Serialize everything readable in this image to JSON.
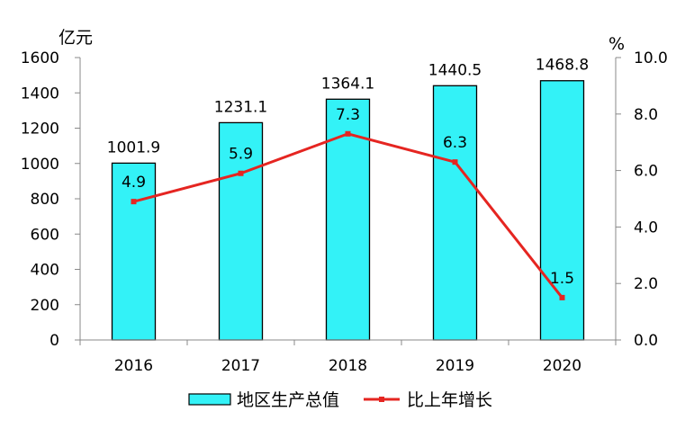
{
  "chart_data": {
    "type": "bar+line",
    "categories": [
      "2016",
      "2017",
      "2018",
      "2019",
      "2020"
    ],
    "series": [
      {
        "name": "地区生产总值",
        "type": "bar",
        "axis": "left",
        "values": [
          1001.9,
          1231.1,
          1364.1,
          1440.5,
          1468.8
        ],
        "labels": [
          "1001.9",
          "1231.1",
          "1364.1",
          "1440.5",
          "1468.8"
        ],
        "color": "#33f2f7",
        "edge_color": "#000000"
      },
      {
        "name": "比上年增长",
        "type": "line",
        "axis": "right",
        "values": [
          4.9,
          5.9,
          7.3,
          6.3,
          1.5
        ],
        "labels": [
          "4.9",
          "5.9",
          "7.3",
          "6.3",
          "1.5"
        ],
        "color": "#e52521"
      }
    ],
    "y_left": {
      "unit": "亿元",
      "ylim": [
        0,
        1600
      ],
      "ticks": [
        "0",
        "200",
        "400",
        "600",
        "800",
        "1000",
        "1200",
        "1400",
        "1600"
      ]
    },
    "y_right": {
      "unit": "%",
      "ylim": [
        0,
        10
      ],
      "ticks": [
        "0.0",
        "2.0",
        "4.0",
        "6.0",
        "8.0",
        "10.0"
      ]
    },
    "grid": false,
    "legend_position": "bottom"
  }
}
